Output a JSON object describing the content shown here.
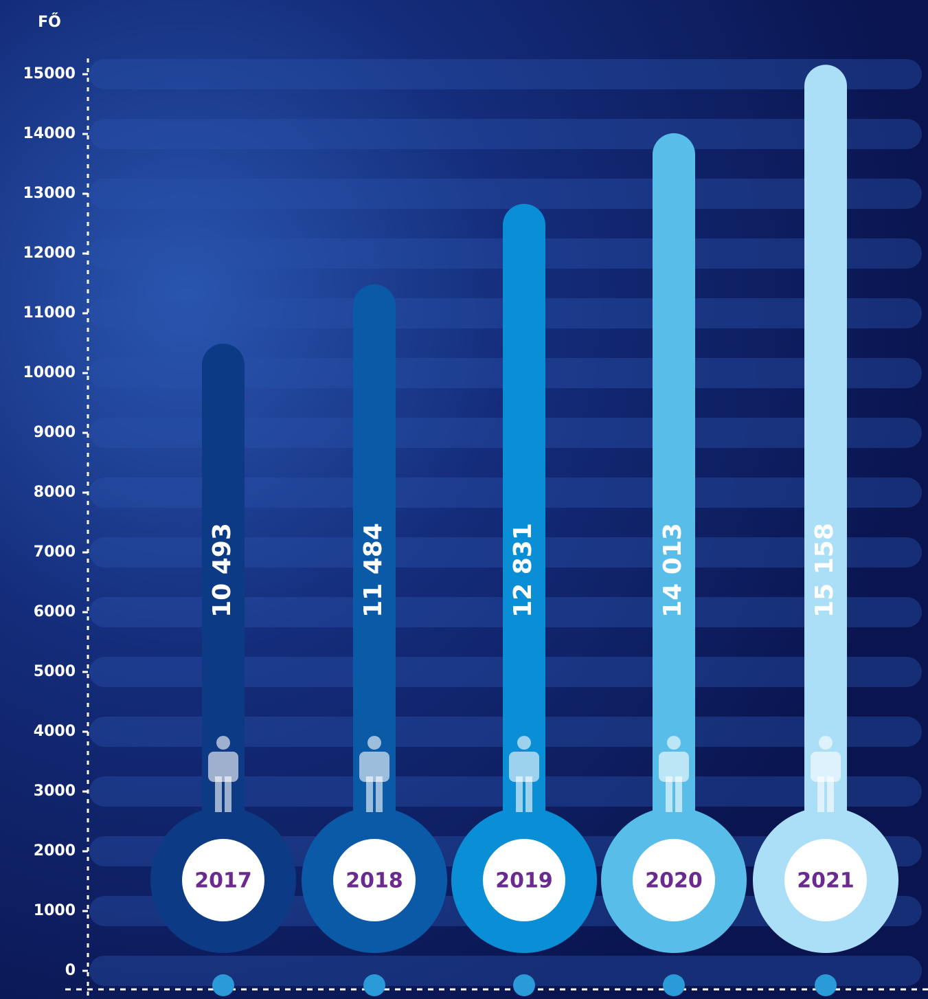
{
  "chart_data": {
    "type": "bar",
    "y_label": "FŐ",
    "categories": [
      "2017",
      "2018",
      "2019",
      "2020",
      "2021"
    ],
    "values": [
      10493,
      11484,
      12831,
      14013,
      15158
    ],
    "value_labels": [
      "10 493",
      "11 484",
      "12 831",
      "14 013",
      "15 158"
    ],
    "colors": [
      "#0d3a85",
      "#0b5aa8",
      "#0a8fd6",
      "#58bde9",
      "#abdff7"
    ],
    "ylim": [
      0,
      15500
    ],
    "yticks": [
      0,
      1000,
      2000,
      3000,
      4000,
      5000,
      6000,
      7000,
      8000,
      9000,
      10000,
      11000,
      12000,
      13000,
      14000,
      15000
    ],
    "grid": true
  }
}
